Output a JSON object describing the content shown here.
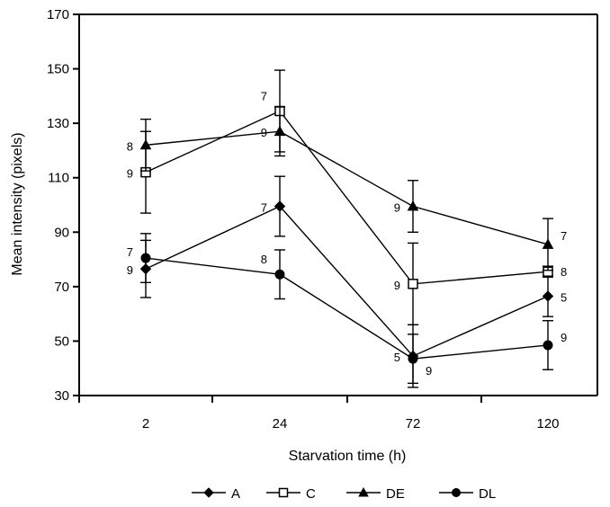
{
  "chart_data": {
    "type": "line",
    "xlabel": "Starvation time (h)",
    "ylabel": "Mean intensity (pixels)",
    "categories": [
      "2",
      "24",
      "72",
      "120"
    ],
    "ylim": [
      30,
      170
    ],
    "yticks": [
      30,
      50,
      70,
      90,
      110,
      130,
      150,
      170
    ],
    "grid": false,
    "legend_position": "bottom",
    "series": [
      {
        "name": "A",
        "marker": "diamond-filled",
        "values": [
          76.5,
          99.5,
          44.5,
          66.5
        ],
        "error": [
          10.5,
          11,
          11.5,
          7.5
        ],
        "n": [
          "9",
          "7",
          "5",
          "5"
        ]
      },
      {
        "name": "C",
        "marker": "square-open",
        "values": [
          112,
          134.5,
          71,
          75.5
        ],
        "error": [
          15,
          15,
          15,
          2
        ],
        "n": [
          "9",
          "7",
          "9",
          "8"
        ]
      },
      {
        "name": "DE",
        "marker": "triangle-filled",
        "values": [
          122,
          127,
          99.5,
          85.5
        ],
        "error": [
          9.5,
          9,
          9.5,
          9.5
        ],
        "n": [
          "8",
          "9",
          "9",
          "7"
        ]
      },
      {
        "name": "DL",
        "marker": "circle-filled",
        "values": [
          80.5,
          74.5,
          43.5,
          48.5
        ],
        "error": [
          9,
          9,
          9,
          9
        ],
        "n": [
          "7",
          "8",
          "9",
          "9"
        ]
      }
    ]
  }
}
